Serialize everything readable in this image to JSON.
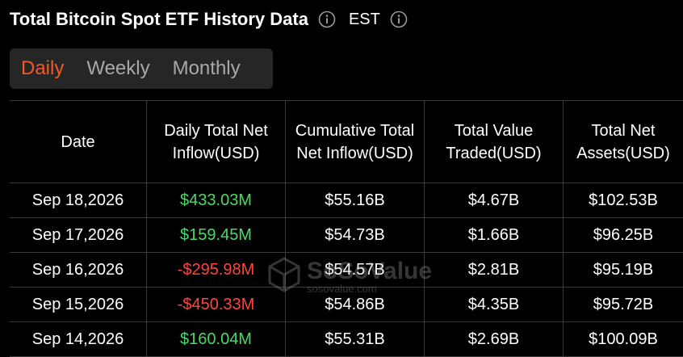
{
  "header": {
    "title": "Total Bitcoin Spot ETF History Data",
    "timezone": "EST"
  },
  "tabs": [
    {
      "label": "Daily",
      "active": true
    },
    {
      "label": "Weekly",
      "active": false
    },
    {
      "label": "Monthly",
      "active": false
    }
  ],
  "table": {
    "columns": [
      "Date",
      "Daily Total Net Inflow(USD)",
      "Cumulative Total Net Inflow(USD)",
      "Total Value Traded(USD)",
      "Total Net Assets(USD)"
    ],
    "rows": [
      {
        "date": "Sep 18,2026",
        "daily_net_inflow": "$433.03M",
        "cumulative_net_inflow": "$55.16B",
        "value_traded": "$4.67B",
        "net_assets": "$102.53B"
      },
      {
        "date": "Sep 17,2026",
        "daily_net_inflow": "$159.45M",
        "cumulative_net_inflow": "$54.73B",
        "value_traded": "$1.66B",
        "net_assets": "$96.25B"
      },
      {
        "date": "Sep 16,2026",
        "daily_net_inflow": "-$295.98M",
        "cumulative_net_inflow": "$54.57B",
        "value_traded": "$2.81B",
        "net_assets": "$95.19B"
      },
      {
        "date": "Sep 15,2026",
        "daily_net_inflow": "-$450.33M",
        "cumulative_net_inflow": "$54.86B",
        "value_traded": "$4.35B",
        "net_assets": "$95.72B"
      },
      {
        "date": "Sep 14,2026",
        "daily_net_inflow": "$160.04M",
        "cumulative_net_inflow": "$55.31B",
        "value_traded": "$2.69B",
        "net_assets": "$100.09B"
      }
    ]
  },
  "watermark": {
    "brand": "SoSoValue",
    "url": "sosovalue.com"
  },
  "icons": {
    "title_info": "info-circle-icon",
    "timezone_info": "info-circle-icon",
    "watermark_logo": "cube-logo-icon"
  },
  "colors": {
    "background": "#000000",
    "tab_bar": "#262626",
    "active_tab": "#f0592a",
    "inactive_tab": "#a8a8a8",
    "positive": "#4cd964",
    "negative": "#ff453a",
    "grid": "#3a3a3a"
  }
}
